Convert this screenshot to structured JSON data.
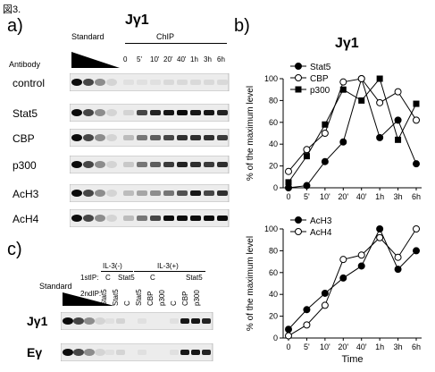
{
  "figure_label": "図3.",
  "panel_a": {
    "label": "a)",
    "title": "Jγ1",
    "standard_label": "Standard",
    "chip_label": "ChIP",
    "antibody_label": "Antibody",
    "chip_timepoints": [
      "0",
      "5'",
      "10'",
      "20'",
      "40'",
      "1h",
      "3h",
      "6h"
    ],
    "rows": [
      {
        "label": "control",
        "standard": [
          0.95,
          0.7,
          0.4,
          0.1
        ],
        "chip": [
          0.05,
          0.05,
          0.05,
          0.08,
          0.08,
          0.08,
          0.08,
          0.08
        ]
      },
      {
        "label": "Stat5",
        "standard": [
          0.95,
          0.7,
          0.4,
          0.1
        ],
        "chip": [
          0.1,
          0.7,
          0.85,
          0.9,
          0.95,
          0.9,
          0.9,
          0.85
        ]
      },
      {
        "label": "CBP",
        "standard": [
          0.95,
          0.7,
          0.4,
          0.1
        ],
        "chip": [
          0.2,
          0.5,
          0.6,
          0.7,
          0.8,
          0.8,
          0.8,
          0.75
        ]
      },
      {
        "label": "p300",
        "standard": [
          0.95,
          0.7,
          0.4,
          0.1
        ],
        "chip": [
          0.15,
          0.5,
          0.6,
          0.75,
          0.85,
          0.8,
          0.75,
          0.8
        ]
      },
      {
        "label": "AcH3",
        "standard": [
          0.95,
          0.7,
          0.4,
          0.1
        ],
        "chip": [
          0.2,
          0.3,
          0.4,
          0.5,
          0.65,
          0.9,
          0.7,
          0.8
        ]
      },
      {
        "label": "AcH4",
        "standard": [
          0.95,
          0.7,
          0.4,
          0.1
        ],
        "chip": [
          0.2,
          0.5,
          0.7,
          0.95,
          0.95,
          0.95,
          0.95,
          0.95
        ]
      }
    ]
  },
  "panel_b": {
    "label": "b)",
    "title": "Jγ1"
  },
  "panel_c": {
    "label": "c)",
    "standard_label": "Standard",
    "il3_minus": "IL-3(-)",
    "il3_plus": "IL-3(+)",
    "first_ip_label": "1stIP:",
    "second_ip_label": "2ndIP:",
    "first_ip_values": [
      "C",
      "Stat5",
      "C",
      "Stat5"
    ],
    "second_ip_values": [
      "Stat5",
      "Stat5",
      "C",
      "Stat5",
      "CBP",
      "p300",
      "C",
      "CBP",
      "p300"
    ],
    "rows": [
      {
        "label": "Jγ1",
        "standard": [
          0.95,
          0.7,
          0.4,
          0.1
        ],
        "lanes": [
          0.05,
          0.1,
          0,
          0.05,
          0,
          0,
          0.05,
          0.9,
          0.9,
          0.85
        ]
      },
      {
        "label": "Eγ",
        "standard": [
          0.95,
          0.7,
          0.4,
          0.1
        ],
        "lanes": [
          0.05,
          0.1,
          0,
          0.05,
          0,
          0,
          0.05,
          0.9,
          0.9,
          0.85
        ]
      }
    ]
  },
  "chart_data": [
    {
      "type": "line",
      "title": "Jγ1",
      "xlabel": "",
      "ylabel": "% of the maximum level",
      "categories": [
        "0",
        "5'",
        "10'",
        "20'",
        "40'",
        "1h",
        "3h",
        "6h"
      ],
      "ylim": [
        0,
        100
      ],
      "yticks": [
        0,
        20,
        40,
        60,
        80,
        100
      ],
      "legend_placement": "top-left",
      "series": [
        {
          "name": "Stat5",
          "marker": "filled-circle",
          "values": [
            0,
            2,
            24,
            42,
            100,
            46,
            62,
            22
          ]
        },
        {
          "name": "CBP",
          "marker": "open-circle",
          "values": [
            15,
            35,
            50,
            97,
            100,
            78,
            88,
            62
          ]
        },
        {
          "name": "p300",
          "marker": "filled-square",
          "values": [
            5,
            29,
            58,
            90,
            80,
            100,
            44,
            77
          ]
        }
      ]
    },
    {
      "type": "line",
      "title": "",
      "xlabel": "Time",
      "ylabel": "% of the maximum level",
      "categories": [
        "0",
        "5'",
        "10'",
        "20'",
        "40'",
        "1h",
        "3h",
        "6h"
      ],
      "ylim": [
        0,
        100
      ],
      "yticks": [
        0,
        20,
        40,
        60,
        80,
        100
      ],
      "legend_placement": "top-left",
      "series": [
        {
          "name": "AcH3",
          "marker": "filled-circle",
          "values": [
            8,
            26,
            41,
            55,
            66,
            100,
            63,
            80
          ]
        },
        {
          "name": "AcH4",
          "marker": "open-circle",
          "values": [
            2,
            12,
            30,
            72,
            76,
            92,
            74,
            100
          ]
        }
      ]
    }
  ]
}
